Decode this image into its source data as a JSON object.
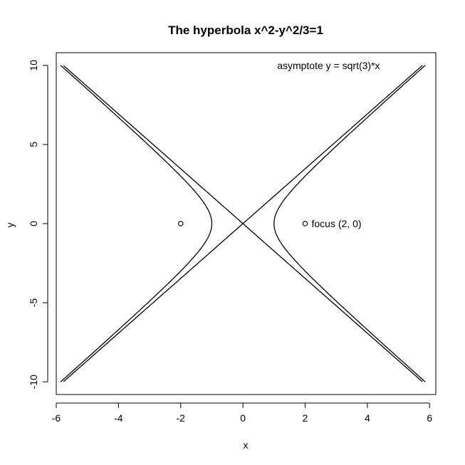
{
  "chart_data": {
    "type": "line",
    "title": "The hyperbola x^2-y^2/3=1",
    "xlabel": "x",
    "ylabel": "y",
    "xlim": [
      -6.0,
      6.2
    ],
    "ylim": [
      -10.8,
      10.8
    ],
    "x_ticks": [
      -6,
      -4,
      -2,
      0,
      2,
      4,
      6
    ],
    "y_ticks": [
      -10,
      -5,
      0,
      5,
      10
    ],
    "x_tick_labels": [
      "-6",
      "-4",
      "-2",
      "0",
      "2",
      "4",
      "6"
    ],
    "y_tick_labels": [
      "-10",
      "-5",
      "0",
      "5",
      "10"
    ],
    "grid": false,
    "hyperbola": {
      "equation": "x^2 - y^2/3 = 1",
      "a": 1,
      "b_squared": 3,
      "y_range": [
        -10,
        10
      ]
    },
    "asymptotes": [
      {
        "slope": 1.732,
        "x_range": [
          -5.77,
          5.77
        ]
      },
      {
        "slope": -1.732,
        "x_range": [
          -5.77,
          5.77
        ]
      }
    ],
    "points": [
      {
        "x": -2,
        "y": 0,
        "label": ""
      },
      {
        "x": 2,
        "y": 0,
        "label": "focus (2, 0)"
      }
    ],
    "annotations": [
      {
        "text": "asymptote y = sqrt(3)*x",
        "x": 1.1,
        "y": 10
      }
    ]
  }
}
